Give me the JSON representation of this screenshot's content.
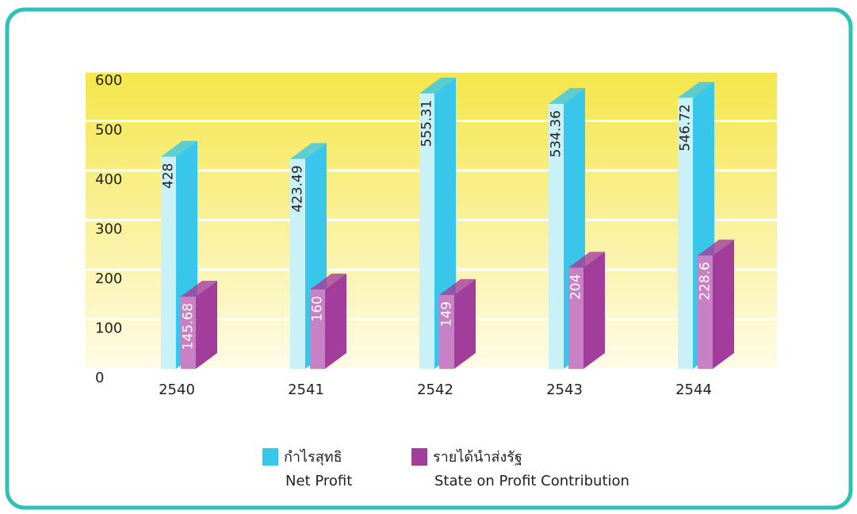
{
  "chart_data": {
    "type": "bar3d",
    "categories": [
      "2540",
      "2541",
      "2542",
      "2543",
      "2544"
    ],
    "series": [
      {
        "name": "กำไรสุทธิ",
        "name_en": "Net Profit",
        "color": "#38c6ea",
        "values": [
          428,
          423.49,
          555.31,
          534.36,
          546.72
        ]
      },
      {
        "name": "รายได้นำส่งรัฐ",
        "name_en": "State on Profit Contribution",
        "color": "#a23d9c",
        "values": [
          145.68,
          160,
          149,
          204,
          228.6
        ]
      }
    ],
    "ylim": [
      0,
      600
    ],
    "yticks": [
      0,
      100,
      200,
      300,
      400,
      500,
      600
    ],
    "grid": true
  }
}
